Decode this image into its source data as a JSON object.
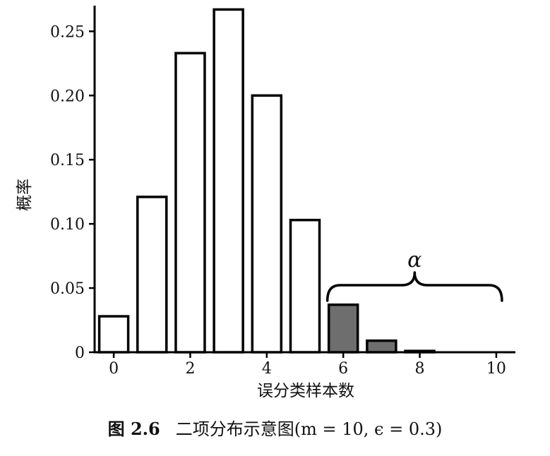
{
  "chart_data": {
    "type": "bar",
    "xlabel": "误分类样本数",
    "ylabel": "概率",
    "x_tick_labels": [
      "0",
      "2",
      "4",
      "6",
      "8",
      "10"
    ],
    "y_tick_labels": [
      "0",
      "0.05",
      "0.10",
      "0.15",
      "0.20",
      "0.25"
    ],
    "y_ticks": [
      0,
      0.05,
      0.1,
      0.15,
      0.2,
      0.25
    ],
    "xlim": [
      -0.5,
      10.5
    ],
    "ylim": [
      0,
      0.27
    ],
    "grid": false,
    "categories": [
      0,
      1,
      2,
      3,
      4,
      5,
      6,
      7,
      8,
      9,
      10
    ],
    "values": [
      0.028,
      0.121,
      0.233,
      0.267,
      0.2,
      0.103,
      0.037,
      0.009,
      0.001,
      0.0001,
      0.0
    ],
    "highlighted_categories": [
      6,
      7,
      8,
      9,
      10
    ],
    "highlight_color": "#6e6e6e",
    "bar_color": "#ffffff",
    "annotation": {
      "label": "α",
      "spans_categories": [
        6,
        10
      ]
    }
  },
  "caption": {
    "label": "图 2.6",
    "text": "二项分布示意图(m = 10, ϵ = 0.3)"
  }
}
